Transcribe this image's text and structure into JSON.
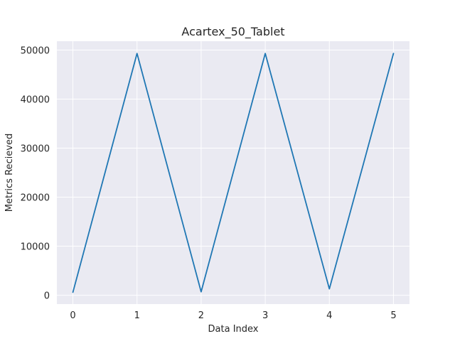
{
  "chart_data": {
    "type": "line",
    "title": "Acartex_50_Tablet",
    "xlabel": "Data Index",
    "ylabel": "Metrics Recieved",
    "x": [
      0,
      1,
      2,
      3,
      4,
      5
    ],
    "series": [
      {
        "values": [
          600,
          49300,
          700,
          49300,
          1300,
          49300
        ]
      }
    ],
    "xlim": [
      -0.25,
      5.25
    ],
    "ylim": [
      -1800,
      51800
    ],
    "xticks": [
      0,
      1,
      2,
      3,
      4,
      5
    ],
    "yticks": [
      0,
      10000,
      20000,
      30000,
      40000,
      50000
    ],
    "xtick_labels": [
      "0",
      "1",
      "2",
      "3",
      "4",
      "5"
    ],
    "ytick_labels": [
      "0",
      "10000",
      "20000",
      "30000",
      "40000",
      "50000"
    ],
    "grid": true,
    "colors": {
      "background": "#eaeaf2",
      "grid": "#ffffff",
      "line": "#1f77b4",
      "text": "#262626"
    }
  }
}
